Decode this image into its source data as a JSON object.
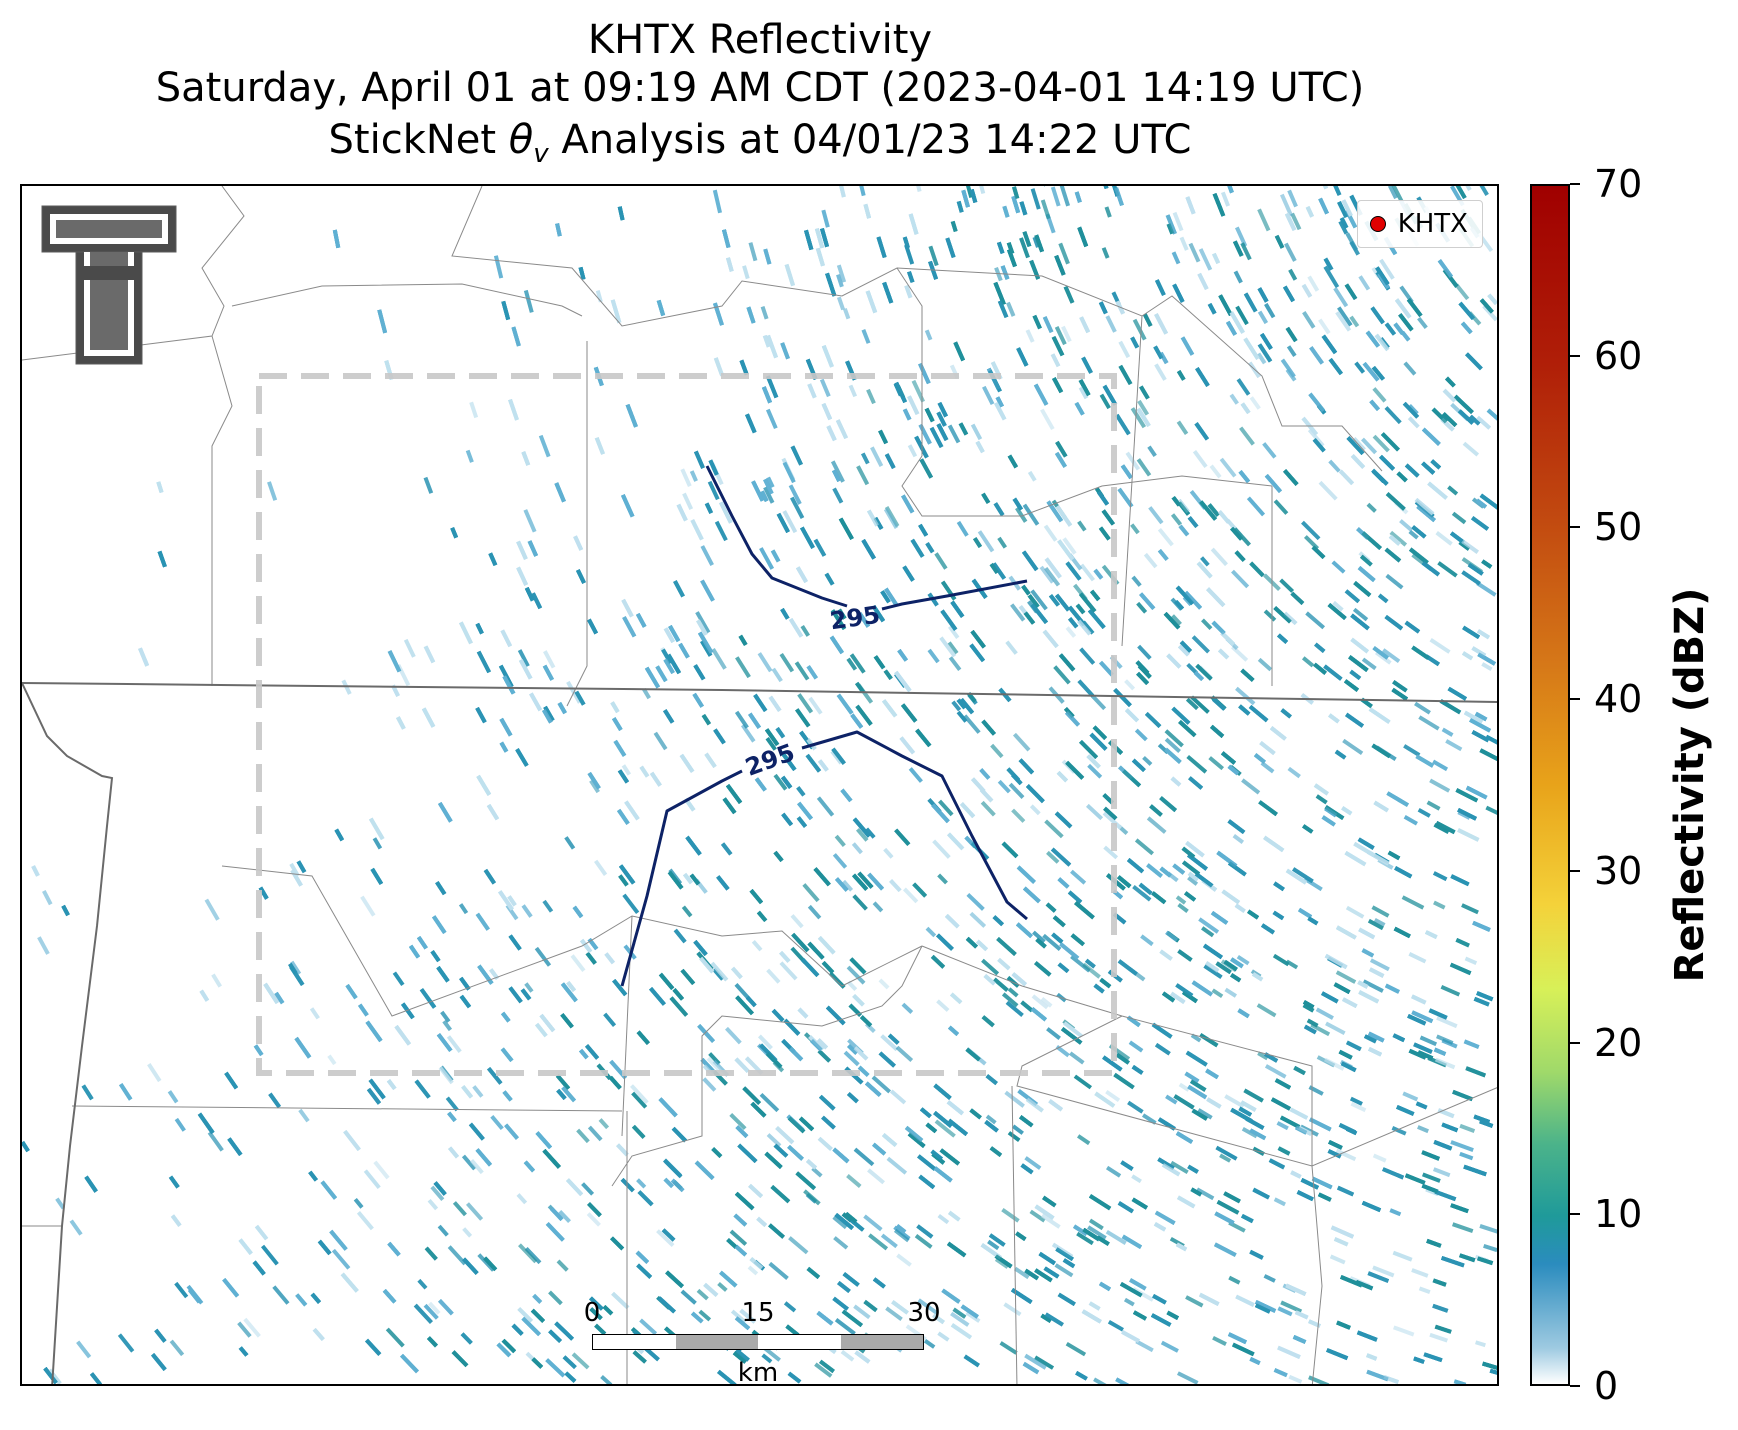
{
  "title": {
    "line1": "KHTX Reflectivity",
    "line2": "Saturday, April 01 at 09:19 AM CDT (2023-04-01 14:19 UTC)",
    "line3_prefix": "StickNet ",
    "line3_symbol": "θ",
    "line3_subscript": "v",
    "line3_suffix": " Analysis at 04/01/23 14:22 UTC"
  },
  "legend": {
    "label": "KHTX",
    "marker_color": "#e00000"
  },
  "contours": [
    {
      "label": "295",
      "color": "#0d2266"
    },
    {
      "label": "295",
      "color": "#0d2266"
    }
  ],
  "scalebar": {
    "ticks": [
      "0",
      "15",
      "30"
    ],
    "unit": "km"
  },
  "colorbar": {
    "title": "Reflectivity (dBZ)",
    "ticks": [
      "0",
      "10",
      "20",
      "30",
      "40",
      "50",
      "60",
      "70"
    ],
    "range": [
      0,
      70
    ],
    "colors": [
      "#ffffff",
      "#2b8cbe",
      "#4bb38a",
      "#d8f058",
      "#f4d23a",
      "#e8a31a",
      "#d67818",
      "#a00000"
    ]
  },
  "colors": {
    "echo_light": "#bfe0ee",
    "echo_mid": "#5fb0d2",
    "echo_dark": "#2a93b3",
    "echo_teal": "#1f8f9a",
    "boundary_color": "#888888",
    "domain_box_color": "#c8c8c8"
  },
  "logo": {
    "name": "texas-tech-double-t-logo"
  }
}
